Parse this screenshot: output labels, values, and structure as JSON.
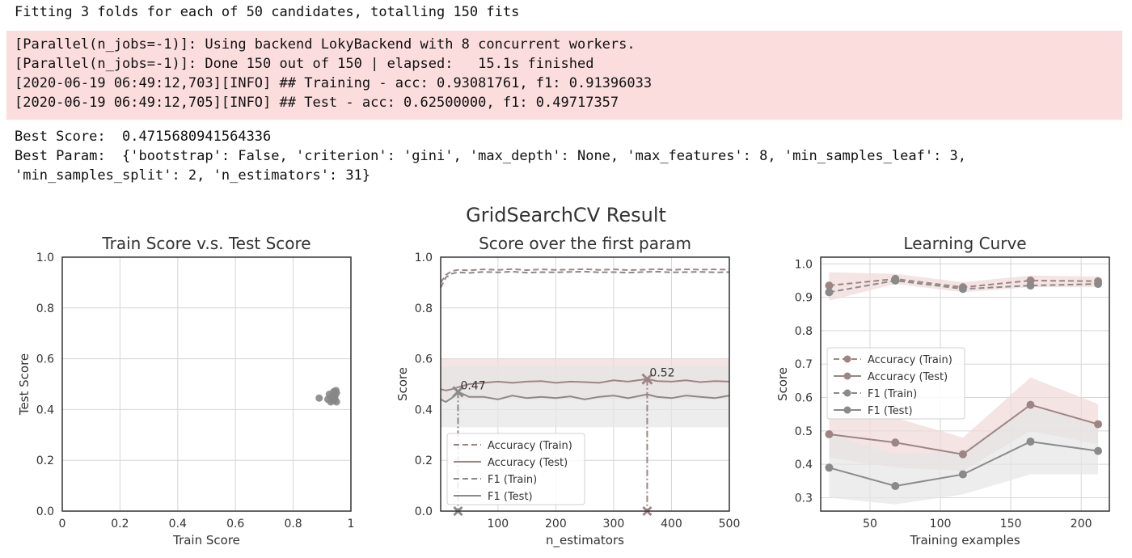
{
  "output": {
    "header_line": "Fitting 3 folds for each of 50 candidates, totalling 150 fits",
    "stderr_lines": [
      "[Parallel(n_jobs=-1)]: Using backend LokyBackend with 8 concurrent workers.",
      "[Parallel(n_jobs=-1)]: Done 150 out of 150 | elapsed:   15.1s finished",
      "[2020-06-19 06:49:12,703][INFO] ## Training - acc: 0.93081761, f1: 0.91396033",
      "[2020-06-19 06:49:12,705][INFO] ## Test - acc: 0.62500000, f1: 0.49717357"
    ],
    "best_score": "Best Score:  0.4715680941564336",
    "best_param_lines": [
      "Best Param:  {'bootstrap': False, 'criterion': 'gini', 'max_depth': None, 'max_features': 8, 'min_samples_leaf': 3,",
      "'min_samples_split': 2, 'n_estimators': 31}"
    ]
  },
  "figure": {
    "suptitle": "GridSearchCV Result",
    "colors": {
      "accuracy": "#9e8585",
      "f1": "#8a8a8a",
      "band_accuracy": "#f0d8d8",
      "band_f1": "#e6e6e6",
      "grid": "#d6d6d6",
      "frame": "#333333"
    }
  },
  "chart_data": [
    {
      "type": "scatter",
      "title": "Train Score v.s. Test Score",
      "xlabel": "Train Score",
      "ylabel": "Test Score",
      "xlim": [
        0.0,
        1.0
      ],
      "ylim": [
        0.0,
        1.0
      ],
      "xticks": [
        0.0,
        0.2,
        0.4,
        0.6,
        0.8,
        1.0
      ],
      "yticks": [
        0.0,
        0.2,
        0.4,
        0.6,
        0.8,
        1.0
      ],
      "grid": true,
      "points": [
        {
          "x": 0.89,
          "y": 0.445
        },
        {
          "x": 0.92,
          "y": 0.44
        },
        {
          "x": 0.925,
          "y": 0.46
        },
        {
          "x": 0.93,
          "y": 0.43
        },
        {
          "x": 0.935,
          "y": 0.45
        },
        {
          "x": 0.94,
          "y": 0.47
        },
        {
          "x": 0.94,
          "y": 0.435
        },
        {
          "x": 0.945,
          "y": 0.455
        },
        {
          "x": 0.945,
          "y": 0.44
        },
        {
          "x": 0.95,
          "y": 0.465
        },
        {
          "x": 0.95,
          "y": 0.43
        },
        {
          "x": 0.948,
          "y": 0.475
        }
      ]
    },
    {
      "type": "line",
      "title": "Score over the first param",
      "xlabel": "n_estimators",
      "ylabel": "Score",
      "xlim": [
        1,
        500
      ],
      "ylim": [
        0.0,
        1.0
      ],
      "xticks": [
        100,
        200,
        300,
        400,
        500
      ],
      "yticks": [
        0.0,
        0.2,
        0.4,
        0.6,
        0.8,
        1.0
      ],
      "grid": true,
      "legend_position": "lower-left",
      "x": [
        1,
        10,
        20,
        31,
        50,
        75,
        100,
        125,
        150,
        175,
        200,
        225,
        250,
        275,
        300,
        325,
        358,
        375,
        400,
        425,
        450,
        475,
        500
      ],
      "series": [
        {
          "name": "Accuracy (Train)",
          "style": "dashed",
          "metric": "accuracy",
          "values": [
            0.9,
            0.93,
            0.945,
            0.95,
            0.948,
            0.952,
            0.95,
            0.953,
            0.949,
            0.952,
            0.95,
            0.951,
            0.953,
            0.95,
            0.952,
            0.949,
            0.951,
            0.953,
            0.95,
            0.952,
            0.951,
            0.952,
            0.951
          ]
        },
        {
          "name": "Accuracy (Test)",
          "style": "solid",
          "metric": "accuracy",
          "values": [
            0.48,
            0.475,
            0.48,
            0.488,
            0.5,
            0.505,
            0.51,
            0.505,
            0.51,
            0.512,
            0.505,
            0.51,
            0.508,
            0.505,
            0.515,
            0.51,
            0.52,
            0.512,
            0.51,
            0.515,
            0.508,
            0.512,
            0.51
          ]
        },
        {
          "name": "F1 (Train)",
          "style": "dashed",
          "metric": "f1",
          "values": [
            0.88,
            0.92,
            0.935,
            0.94,
            0.938,
            0.942,
            0.94,
            0.943,
            0.939,
            0.941,
            0.94,
            0.942,
            0.943,
            0.94,
            0.941,
            0.939,
            0.942,
            0.943,
            0.94,
            0.941,
            0.942,
            0.94,
            0.941
          ]
        },
        {
          "name": "F1 (Test)",
          "style": "solid",
          "metric": "f1",
          "values": [
            0.44,
            0.43,
            0.445,
            0.47,
            0.45,
            0.45,
            0.44,
            0.455,
            0.445,
            0.45,
            0.445,
            0.452,
            0.44,
            0.45,
            0.455,
            0.445,
            0.46,
            0.45,
            0.445,
            0.455,
            0.45,
            0.445,
            0.455
          ]
        }
      ],
      "bands": [
        {
          "metric": "accuracy",
          "lower": 0.44,
          "upper": 0.6
        },
        {
          "metric": "f1",
          "lower": 0.33,
          "upper": 0.57
        }
      ],
      "best_markers": [
        {
          "x": 31,
          "y": 0.47,
          "label": "0.47",
          "metric": "f1"
        },
        {
          "x": 358,
          "y": 0.52,
          "label": "0.52",
          "metric": "accuracy"
        }
      ]
    },
    {
      "type": "line",
      "title": "Learning Curve",
      "xlabel": "Training examples",
      "ylabel": "Score",
      "xlim": [
        15,
        220
      ],
      "ylim": [
        0.26,
        1.02
      ],
      "xticks": [
        50,
        100,
        150,
        200
      ],
      "yticks": [
        0.3,
        0.4,
        0.5,
        0.6,
        0.7,
        0.8,
        0.9,
        1.0
      ],
      "grid": true,
      "legend_position": "center-left",
      "x": [
        21,
        68,
        116,
        164,
        212
      ],
      "series": [
        {
          "name": "Accuracy (Train)",
          "style": "dashed",
          "metric": "accuracy",
          "values": [
            0.935,
            0.955,
            0.93,
            0.95,
            0.948
          ]
        },
        {
          "name": "Accuracy (Test)",
          "style": "solid",
          "metric": "accuracy",
          "values": [
            0.49,
            0.465,
            0.43,
            0.578,
            0.52
          ]
        },
        {
          "name": "F1 (Train)",
          "style": "dashed",
          "metric": "f1",
          "values": [
            0.915,
            0.95,
            0.925,
            0.935,
            0.94
          ]
        },
        {
          "name": "F1 (Test)",
          "style": "solid",
          "metric": "f1",
          "values": [
            0.39,
            0.335,
            0.37,
            0.468,
            0.44
          ]
        }
      ],
      "bands": [
        {
          "metric": "accuracy",
          "lower": [
            0.89,
            0.94,
            0.915,
            0.93,
            0.93
          ],
          "upper": [
            0.975,
            0.97,
            0.945,
            0.965,
            0.962
          ]
        },
        {
          "metric": "accuracy",
          "lower": [
            0.42,
            0.39,
            0.38,
            0.5,
            0.46
          ],
          "upper": [
            0.56,
            0.54,
            0.48,
            0.66,
            0.58
          ]
        },
        {
          "metric": "f1",
          "lower": [
            0.3,
            0.28,
            0.31,
            0.37,
            0.37
          ],
          "upper": [
            0.49,
            0.43,
            0.44,
            0.57,
            0.52
          ]
        }
      ]
    }
  ]
}
